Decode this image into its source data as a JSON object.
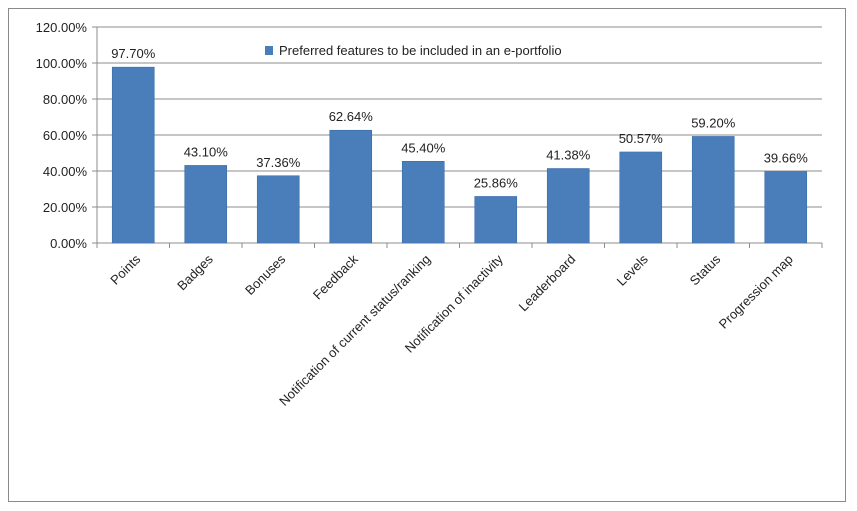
{
  "chart_data": {
    "type": "bar",
    "categories": [
      "Points",
      "Badges",
      "Bonuses",
      "Feedback",
      "Notification of current status/ranking",
      "Notification of inactivity",
      "Leaderboard",
      "Levels",
      "Status",
      "Progression map"
    ],
    "series": [
      {
        "name": "Preferred features to be included in an e-portfolio",
        "values": [
          97.7,
          43.1,
          37.36,
          62.64,
          45.4,
          25.86,
          41.38,
          50.57,
          59.2,
          39.66
        ],
        "value_labels": [
          "97.70%",
          "43.10%",
          "37.36%",
          "62.64%",
          "45.40%",
          "25.86%",
          "41.38%",
          "50.57%",
          "59.20%",
          "39.66%"
        ],
        "color": "#4a7ebb"
      }
    ],
    "title": "",
    "xlabel": "",
    "ylabel": "",
    "ylim": [
      0,
      120
    ],
    "y_ticks": [
      0,
      20,
      40,
      60,
      80,
      100,
      120
    ],
    "y_tick_labels": [
      "0.00%",
      "20.00%",
      "40.00%",
      "60.00%",
      "80.00%",
      "100.00%",
      "120.00%"
    ],
    "grid": true,
    "legend_position": "top-center"
  }
}
